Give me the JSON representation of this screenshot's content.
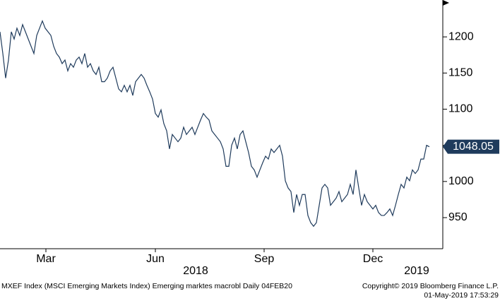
{
  "chart_data": {
    "type": "line",
    "color": "#1f3b5c",
    "values": [
      1207,
      1177,
      1143,
      1168,
      1207,
      1197,
      1212,
      1202,
      1217,
      1207,
      1197,
      1187,
      1177,
      1202,
      1212,
      1222,
      1212,
      1207,
      1202,
      1187,
      1177,
      1172,
      1163,
      1168,
      1153,
      1163,
      1158,
      1168,
      1172,
      1163,
      1177,
      1158,
      1163,
      1153,
      1148,
      1158,
      1138,
      1138,
      1143,
      1153,
      1158,
      1143,
      1128,
      1124,
      1133,
      1124,
      1133,
      1119,
      1138,
      1143,
      1148,
      1143,
      1133,
      1124,
      1114,
      1094,
      1089,
      1099,
      1080,
      1070,
      1045,
      1065,
      1060,
      1055,
      1060,
      1075,
      1065,
      1070,
      1075,
      1065,
      1075,
      1085,
      1094,
      1089,
      1085,
      1070,
      1065,
      1060,
      1055,
      1045,
      1021,
      1021,
      1050,
      1060,
      1045,
      1065,
      1070,
      1055,
      1040,
      1021,
      1016,
      1006,
      1016,
      1026,
      1035,
      1031,
      1045,
      1040,
      1045,
      1050,
      1035,
      1001,
      991,
      986,
      957,
      982,
      967,
      982,
      982,
      953,
      943,
      938,
      943,
      967,
      991,
      996,
      991,
      967,
      972,
      977,
      986,
      972,
      977,
      982,
      996,
      982,
      1016,
      991,
      967,
      982,
      972,
      967,
      962,
      967,
      957,
      953,
      953,
      957,
      962,
      953,
      967,
      982,
      996,
      991,
      1006,
      1001,
      1016,
      1011,
      1016,
      1031,
      1031,
      1050,
      1048.05
    ],
    "xlim": [
      0,
      156.75
    ],
    "xticks": [
      {
        "value": 16.25,
        "label": "Mar"
      },
      {
        "value": 55,
        "label": "Jun"
      },
      {
        "value": 93.5,
        "label": "Sep"
      },
      {
        "value": 132,
        "label": "Dec"
      }
    ],
    "years": [
      {
        "value": 69.25,
        "label": "2018"
      },
      {
        "value": 147.5,
        "label": "2019"
      }
    ],
    "ylim": [
      907,
      1251
    ],
    "yticks": [
      950,
      1000,
      1050,
      1100,
      1150,
      1200
    ],
    "footer": {
      "left": "MXEF Index (MSCI Emerging Markets Index) Emerging marktes macrobl  Daily 04FEB20",
      "copyright": "Copyright© 2019 Bloomberg Finance L.P.",
      "timestamp": "01-May-2019 17:53:29"
    }
  }
}
